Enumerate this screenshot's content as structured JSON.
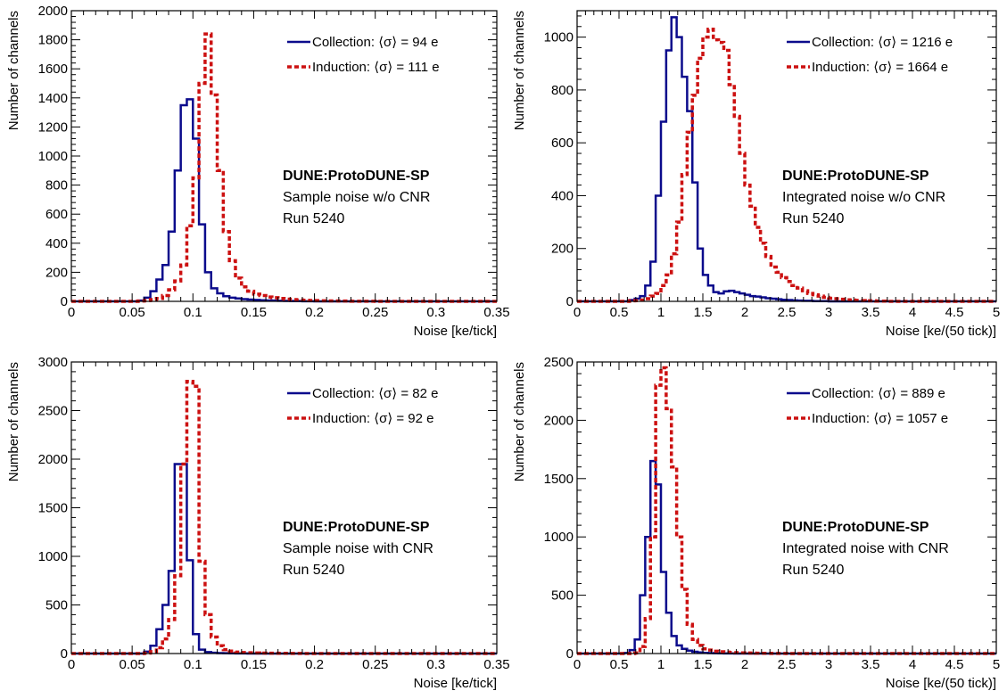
{
  "colors": {
    "collection": "#0b0b8c",
    "induction": "#cc1111",
    "axis": "#000000"
  },
  "chart_data": [
    {
      "type": "histogram",
      "xlabel": "Noise [ke/tick]",
      "ylabel": "Number of channels",
      "xlim": [
        0,
        0.35
      ],
      "ylim": [
        0,
        2000
      ],
      "xticks": [
        {
          "v": 0,
          "label": "0"
        },
        {
          "v": 0.05,
          "label": "0.05"
        },
        {
          "v": 0.1,
          "label": "0.1"
        },
        {
          "v": 0.15,
          "label": "0.15"
        },
        {
          "v": 0.2,
          "label": "0.2"
        },
        {
          "v": 0.25,
          "label": "0.25"
        },
        {
          "v": 0.3,
          "label": "0.3"
        },
        {
          "v": 0.35,
          "label": "0.35"
        }
      ],
      "yticks": [
        {
          "v": 0,
          "label": "0"
        },
        {
          "v": 200,
          "label": "200"
        },
        {
          "v": 400,
          "label": "400"
        },
        {
          "v": 600,
          "label": "600"
        },
        {
          "v": 800,
          "label": "800"
        },
        {
          "v": 1000,
          "label": "1000"
        },
        {
          "v": 1200,
          "label": "1200"
        },
        {
          "v": 1400,
          "label": "1400"
        },
        {
          "v": 1600,
          "label": "1600"
        },
        {
          "v": 1800,
          "label": "1800"
        },
        {
          "v": 2000,
          "label": "2000"
        }
      ],
      "legend_position": "top-right",
      "series": [
        {
          "name": "Collection: ⟨σ⟩ = 94 e",
          "style": "solid",
          "bin_width": 0.005,
          "edges_start": 0,
          "counts": [
            0,
            0,
            0,
            0,
            0,
            0,
            0,
            0,
            0,
            0,
            0,
            5,
            25,
            70,
            150,
            250,
            480,
            900,
            1350,
            1390,
            1120,
            530,
            200,
            90,
            55,
            35,
            25,
            20,
            15,
            12,
            10,
            8,
            6,
            5,
            4,
            3,
            2,
            2,
            1,
            1,
            0,
            0,
            0,
            0,
            0,
            0,
            0,
            0,
            0,
            0,
            0,
            0,
            0,
            0,
            0,
            0,
            0,
            0,
            0,
            0,
            0,
            0,
            0,
            0,
            0,
            0,
            0,
            0,
            0,
            0
          ]
        },
        {
          "name": "Induction: ⟨σ⟩ = 111 e",
          "style": "dashed",
          "bin_width": 0.005,
          "edges_start": 0,
          "counts": [
            0,
            0,
            0,
            0,
            0,
            0,
            0,
            0,
            0,
            0,
            0,
            2,
            5,
            12,
            20,
            40,
            80,
            140,
            250,
            520,
            850,
            1500,
            1840,
            1420,
            900,
            480,
            280,
            160,
            100,
            70,
            50,
            40,
            30,
            25,
            20,
            15,
            12,
            10,
            8,
            6,
            5,
            4,
            3,
            3,
            2,
            2,
            1,
            1,
            1,
            1,
            0,
            0,
            0,
            0,
            0,
            0,
            0,
            0,
            0,
            0,
            0,
            0,
            0,
            0,
            0,
            0,
            0,
            0,
            0,
            0
          ]
        }
      ],
      "annotations": [
        "DUNE:ProtoDUNE-SP",
        "Sample noise w/o CNR",
        "Run 5240"
      ]
    },
    {
      "type": "histogram",
      "xlabel": "Noise [ke/(50 tick)]",
      "ylabel": "Number of channels",
      "xlim": [
        0,
        5
      ],
      "ylim": [
        0,
        1100
      ],
      "xticks": [
        {
          "v": 0,
          "label": "0"
        },
        {
          "v": 0.5,
          "label": "0.5"
        },
        {
          "v": 1,
          "label": "1"
        },
        {
          "v": 1.5,
          "label": "1.5"
        },
        {
          "v": 2,
          "label": "2"
        },
        {
          "v": 2.5,
          "label": "2.5"
        },
        {
          "v": 3,
          "label": "3"
        },
        {
          "v": 3.5,
          "label": "3.5"
        },
        {
          "v": 4,
          "label": "4"
        },
        {
          "v": 4.5,
          "label": "4.5"
        },
        {
          "v": 5,
          "label": "5"
        }
      ],
      "yticks": [
        {
          "v": 0,
          "label": "0"
        },
        {
          "v": 200,
          "label": "200"
        },
        {
          "v": 400,
          "label": "400"
        },
        {
          "v": 600,
          "label": "600"
        },
        {
          "v": 800,
          "label": "800"
        },
        {
          "v": 1000,
          "label": "1000"
        }
      ],
      "legend_position": "top-right",
      "series": [
        {
          "name": "Collection: ⟨σ⟩ = 1216 e",
          "style": "solid",
          "bin_width": 0.0625,
          "edges_start": 0,
          "counts": [
            0,
            0,
            0,
            0,
            0,
            0,
            0,
            0,
            0,
            0,
            5,
            10,
            20,
            60,
            150,
            400,
            680,
            950,
            1075,
            1000,
            850,
            720,
            450,
            200,
            100,
            60,
            35,
            30,
            38,
            40,
            35,
            30,
            25,
            20,
            18,
            15,
            12,
            10,
            8,
            6,
            5,
            4,
            3,
            2,
            2,
            1,
            1,
            1,
            0,
            0,
            0,
            0,
            0,
            0,
            0,
            0,
            0,
            0,
            0,
            0,
            0,
            0,
            0,
            0,
            0,
            0,
            0,
            0,
            0,
            0,
            0,
            0,
            0,
            0,
            0,
            0,
            0,
            0,
            0,
            0
          ]
        },
        {
          "name": "Induction: ⟨σ⟩ = 1664 e",
          "style": "dashed",
          "bin_width": 0.0625,
          "edges_start": 0,
          "counts": [
            0,
            0,
            0,
            0,
            0,
            0,
            0,
            0,
            0,
            0,
            2,
            3,
            5,
            10,
            20,
            30,
            60,
            100,
            180,
            300,
            480,
            640,
            780,
            920,
            1000,
            1030,
            990,
            980,
            950,
            820,
            700,
            560,
            440,
            360,
            280,
            220,
            170,
            130,
            110,
            90,
            75,
            60,
            50,
            40,
            30,
            25,
            20,
            15,
            12,
            10,
            8,
            6,
            5,
            4,
            3,
            2,
            2,
            1,
            1,
            0,
            0,
            0,
            0,
            0,
            0,
            0,
            0,
            0,
            0,
            0,
            0,
            0,
            0,
            0,
            0,
            0,
            0,
            0,
            0,
            0
          ]
        }
      ],
      "annotations": [
        "DUNE:ProtoDUNE-SP",
        "Integrated noise w/o CNR",
        "Run 5240"
      ]
    },
    {
      "type": "histogram",
      "xlabel": "Noise [ke/tick]",
      "ylabel": "Number of channels",
      "xlim": [
        0,
        0.35
      ],
      "ylim": [
        0,
        3000
      ],
      "xticks": [
        {
          "v": 0,
          "label": "0"
        },
        {
          "v": 0.05,
          "label": "0.05"
        },
        {
          "v": 0.1,
          "label": "0.1"
        },
        {
          "v": 0.15,
          "label": "0.15"
        },
        {
          "v": 0.2,
          "label": "0.2"
        },
        {
          "v": 0.25,
          "label": "0.25"
        },
        {
          "v": 0.3,
          "label": "0.3"
        },
        {
          "v": 0.35,
          "label": "0.35"
        }
      ],
      "yticks": [
        {
          "v": 0,
          "label": "0"
        },
        {
          "v": 500,
          "label": "500"
        },
        {
          "v": 1000,
          "label": "1000"
        },
        {
          "v": 1500,
          "label": "1500"
        },
        {
          "v": 2000,
          "label": "2000"
        },
        {
          "v": 2500,
          "label": "2500"
        },
        {
          "v": 3000,
          "label": "3000"
        }
      ],
      "legend_position": "top-right",
      "series": [
        {
          "name": "Collection: ⟨σ⟩ = 82 e",
          "style": "solid",
          "bin_width": 0.005,
          "edges_start": 0,
          "counts": [
            0,
            0,
            0,
            0,
            0,
            0,
            0,
            0,
            0,
            0,
            0,
            0,
            20,
            80,
            250,
            500,
            850,
            1950,
            1950,
            960,
            200,
            40,
            15,
            8,
            5,
            3,
            2,
            1,
            1,
            0,
            0,
            0,
            0,
            0,
            0,
            0,
            0,
            0,
            0,
            0,
            0,
            0,
            0,
            0,
            0,
            0,
            0,
            0,
            0,
            0,
            0,
            0,
            0,
            0,
            0,
            0,
            0,
            0,
            0,
            0,
            0,
            0,
            0,
            0,
            0,
            0,
            0,
            0,
            0,
            0
          ]
        },
        {
          "name": "Induction: ⟨σ⟩ = 92 e",
          "style": "dashed",
          "bin_width": 0.005,
          "edges_start": 0,
          "counts": [
            0,
            0,
            0,
            0,
            0,
            0,
            0,
            0,
            0,
            0,
            0,
            0,
            5,
            20,
            60,
            150,
            350,
            800,
            1950,
            2800,
            2750,
            950,
            400,
            170,
            80,
            40,
            25,
            15,
            10,
            8,
            6,
            5,
            4,
            3,
            2,
            2,
            1,
            1,
            0,
            0,
            0,
            0,
            0,
            0,
            0,
            0,
            0,
            0,
            0,
            0,
            0,
            0,
            0,
            0,
            0,
            0,
            0,
            0,
            0,
            0,
            0,
            0,
            0,
            0,
            0,
            0,
            0,
            0,
            0,
            0
          ]
        }
      ],
      "annotations": [
        "DUNE:ProtoDUNE-SP",
        "Sample noise with CNR",
        "Run 5240"
      ]
    },
    {
      "type": "histogram",
      "xlabel": "Noise [ke/(50 tick)]",
      "ylabel": "Number of channels",
      "xlim": [
        0,
        5
      ],
      "ylim": [
        0,
        2500
      ],
      "xticks": [
        {
          "v": 0,
          "label": "0"
        },
        {
          "v": 0.5,
          "label": "0.5"
        },
        {
          "v": 1,
          "label": "1"
        },
        {
          "v": 1.5,
          "label": "1.5"
        },
        {
          "v": 2,
          "label": "2"
        },
        {
          "v": 2.5,
          "label": "2.5"
        },
        {
          "v": 3,
          "label": "3"
        },
        {
          "v": 3.5,
          "label": "3.5"
        },
        {
          "v": 4,
          "label": "4"
        },
        {
          "v": 4.5,
          "label": "4.5"
        },
        {
          "v": 5,
          "label": "5"
        }
      ],
      "yticks": [
        {
          "v": 0,
          "label": "0"
        },
        {
          "v": 500,
          "label": "500"
        },
        {
          "v": 1000,
          "label": "1000"
        },
        {
          "v": 1500,
          "label": "1500"
        },
        {
          "v": 2000,
          "label": "2000"
        },
        {
          "v": 2500,
          "label": "2500"
        }
      ],
      "legend_position": "top-right",
      "series": [
        {
          "name": "Collection: ⟨σ⟩ = 889 e",
          "style": "solid",
          "bin_width": 0.0625,
          "edges_start": 0,
          "counts": [
            0,
            0,
            0,
            0,
            0,
            0,
            0,
            0,
            0,
            5,
            30,
            120,
            500,
            1000,
            1650,
            1450,
            700,
            350,
            150,
            70,
            40,
            25,
            15,
            10,
            6,
            4,
            3,
            2,
            1,
            1,
            0,
            0,
            0,
            0,
            0,
            0,
            0,
            0,
            0,
            0,
            0,
            0,
            0,
            0,
            0,
            0,
            0,
            0,
            0,
            0,
            0,
            0,
            0,
            0,
            0,
            0,
            0,
            0,
            0,
            0,
            0,
            0,
            0,
            0,
            0,
            0,
            0,
            0,
            0,
            0,
            0,
            0,
            0,
            0,
            0,
            0,
            0,
            0,
            0,
            0
          ]
        },
        {
          "name": "Induction: ⟨σ⟩ = 1057 e",
          "style": "dashed",
          "bin_width": 0.0625,
          "edges_start": 0,
          "counts": [
            0,
            0,
            0,
            0,
            0,
            0,
            0,
            0,
            0,
            0,
            0,
            5,
            60,
            300,
            1000,
            2300,
            2450,
            2100,
            1600,
            1000,
            550,
            250,
            120,
            70,
            40,
            30,
            20,
            15,
            12,
            10,
            8,
            6,
            5,
            4,
            3,
            2,
            2,
            1,
            1,
            1,
            0,
            0,
            0,
            0,
            0,
            0,
            0,
            0,
            0,
            0,
            0,
            0,
            0,
            0,
            0,
            0,
            0,
            0,
            0,
            0,
            0,
            0,
            0,
            0,
            0,
            0,
            0,
            0,
            0,
            0,
            0,
            0,
            0,
            0,
            0,
            0,
            0,
            0,
            0,
            0
          ]
        }
      ],
      "annotations": [
        "DUNE:ProtoDUNE-SP",
        "Integrated noise with CNR",
        "Run 5240"
      ]
    }
  ]
}
